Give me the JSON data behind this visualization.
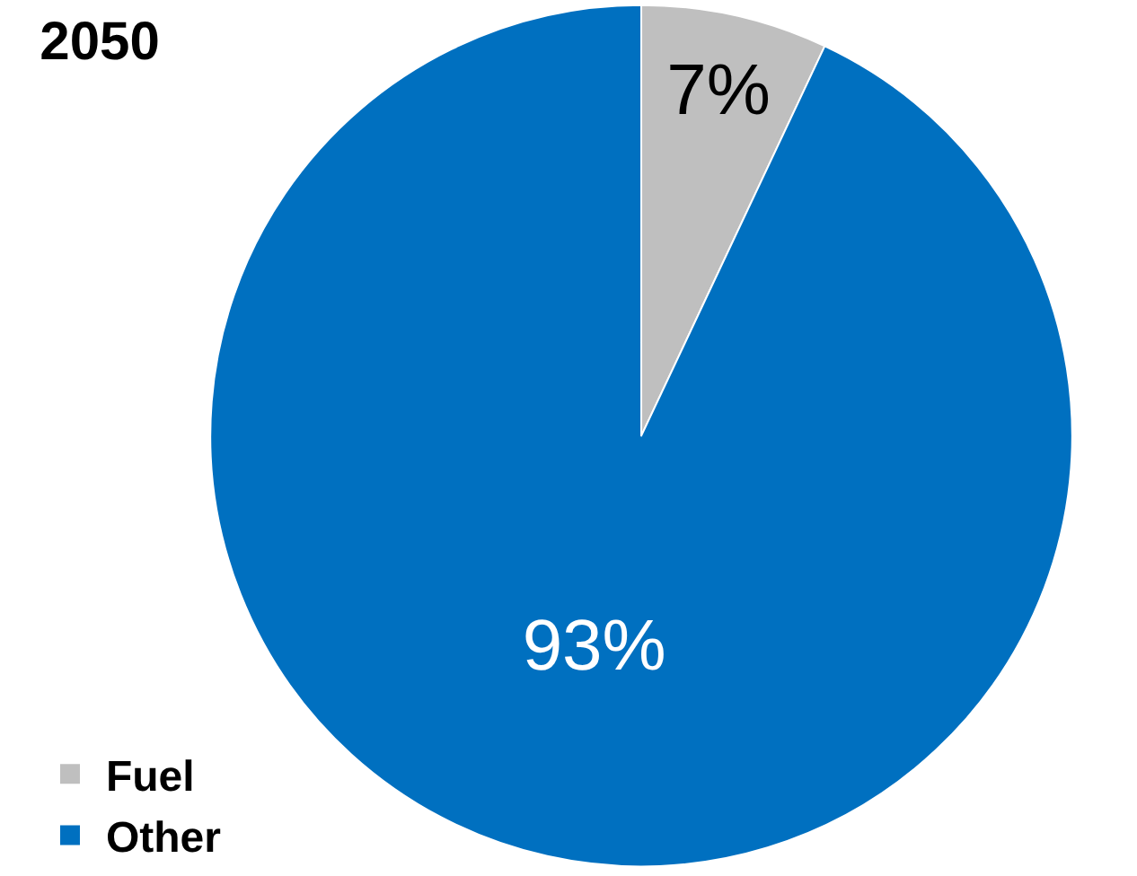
{
  "chart_data": {
    "type": "pie",
    "title": "2050",
    "categories": [
      "Fuel",
      "Other"
    ],
    "values": [
      7,
      93
    ],
    "colors": [
      "#bfbfbf",
      "#0070c0"
    ],
    "value_labels": [
      "7%",
      "93%"
    ],
    "legend": "bottom left"
  }
}
